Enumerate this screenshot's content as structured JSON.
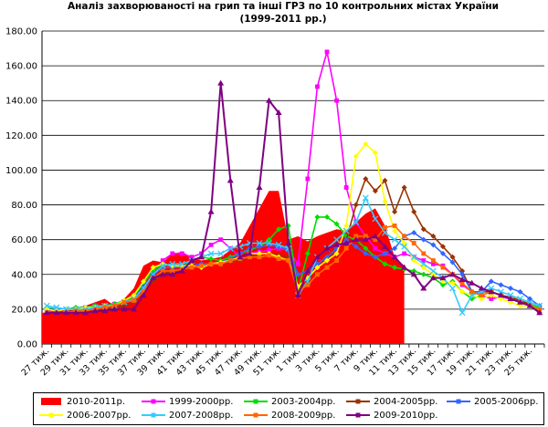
{
  "chart_data": {
    "type": "line",
    "title_line1": "Аналіз захворюваності на грип та інші ГРЗ по 10 контрольних містах України",
    "title_line2": "(1999-2011 рр.)",
    "xlabel": "",
    "ylabel": "",
    "ylim": [
      0,
      180
    ],
    "yticks": [
      "0.00",
      "20.00",
      "40.00",
      "60.00",
      "80.00",
      "100.00",
      "120.00",
      "140.00",
      "160.00",
      "180.00"
    ],
    "grid": "y",
    "categories": [
      "27 тиж.",
      "28 тиж.",
      "29 тиж.",
      "30 тиж.",
      "31 тиж.",
      "32 тиж.",
      "33 тиж.",
      "34 тиж.",
      "35 тиж.",
      "36 тиж.",
      "37 тиж.",
      "38 тиж.",
      "39 тиж.",
      "40 тиж.",
      "41 тиж.",
      "42 тиж.",
      "43 тиж.",
      "44 тиж.",
      "45 тиж.",
      "46 тиж.",
      "47 тиж.",
      "48 тиж.",
      "49 тиж.",
      "50 тиж.",
      "51 тиж.",
      "52 тиж.",
      "1 тиж.",
      "2 тиж.",
      "3 тиж.",
      "4 тиж.",
      "5 тиж.",
      "6 тиж.",
      "7 тиж.",
      "8 тиж.",
      "9 тиж.",
      "10 тиж.",
      "11 тиж.",
      "12 тиж.",
      "13 тиж.",
      "14 тиж.",
      "15 тиж.",
      "16 тиж.",
      "17 тиж.",
      "18 тиж.",
      "19 тиж.",
      "20 тиж.",
      "21 тиж.",
      "22 тиж.",
      "23 тиж.",
      "24 тиж.",
      "25 тиж.",
      "26 тиж."
    ],
    "tick_labels": [
      "27 тиж.",
      "29 тиж.",
      "31 тиж.",
      "33 тиж.",
      "35 тиж.",
      "37 тиж.",
      "39 тиж.",
      "41 тиж.",
      "43 тиж.",
      "45 тиж.",
      "47 тиж.",
      "49 тиж.",
      "51 тиж.",
      "1 тиж.",
      "3 тиж.",
      "5 тиж.",
      "7 тиж.",
      "9 тиж.",
      "11 тиж.",
      "13 тиж.",
      "15 тиж.",
      "17 тиж.",
      "19 тиж.",
      "21 тиж.",
      "23 тиж.",
      "25 тиж."
    ],
    "series": [
      {
        "name": "2010-2011р.",
        "kind": "area",
        "color": "#ff0000",
        "marker": "none",
        "values": [
          18,
          19,
          20,
          21,
          22,
          24,
          26,
          22,
          26,
          32,
          45,
          48,
          47,
          52,
          53,
          50,
          48,
          49,
          50,
          54,
          58,
          68,
          78,
          88,
          88,
          60,
          62,
          59,
          62,
          64,
          66,
          65,
          70,
          75,
          78,
          68,
          50,
          45,
          null,
          null,
          null,
          null,
          null,
          null,
          null,
          null,
          null,
          null,
          null,
          null,
          null,
          null
        ]
      },
      {
        "name": "1999-2000рр.",
        "kind": "line",
        "color": "#ff00ff",
        "marker": "square",
        "values": [
          19,
          19,
          20,
          20,
          21,
          22,
          22,
          23,
          24,
          25,
          33,
          40,
          48,
          52,
          52,
          50,
          52,
          57,
          60,
          55,
          50,
          52,
          53,
          54,
          55,
          54,
          46,
          95,
          148,
          168,
          140,
          90,
          70,
          62,
          55,
          52,
          50,
          52,
          50,
          48,
          46,
          45,
          40,
          34,
          30,
          28,
          26,
          27,
          26,
          24,
          22,
          20
        ]
      },
      {
        "name": "2003-2004рр.",
        "kind": "line",
        "color": "#00dd00",
        "marker": "diamond",
        "values": [
          21,
          20,
          20,
          21,
          21,
          22,
          22,
          23,
          25,
          27,
          35,
          42,
          46,
          45,
          44,
          48,
          50,
          49,
          48,
          50,
          52,
          54,
          56,
          60,
          66,
          68,
          31,
          52,
          73,
          73,
          69,
          62,
          60,
          55,
          50,
          46,
          44,
          43,
          42,
          40,
          38,
          34,
          36,
          30,
          26,
          28,
          30,
          28,
          26,
          24,
          23,
          21
        ]
      },
      {
        "name": "2004-2005рр.",
        "kind": "line",
        "color": "#993300",
        "marker": "diamond",
        "values": [
          18,
          18,
          18,
          19,
          19,
          20,
          20,
          21,
          22,
          24,
          30,
          36,
          40,
          42,
          43,
          44,
          45,
          46,
          46,
          47,
          48,
          50,
          52,
          52,
          51,
          50,
          28,
          37,
          44,
          48,
          55,
          60,
          80,
          95,
          88,
          94,
          76,
          90,
          76,
          66,
          62,
          56,
          50,
          42,
          30,
          30,
          30,
          28,
          27,
          25,
          23,
          18
        ]
      },
      {
        "name": "2005-2006рр.",
        "kind": "line",
        "color": "#3366ff",
        "marker": "diamond",
        "values": [
          20,
          20,
          20,
          20,
          20,
          21,
          22,
          22,
          24,
          26,
          33,
          40,
          44,
          44,
          44,
          45,
          46,
          46,
          47,
          49,
          52,
          55,
          56,
          57,
          56,
          54,
          40,
          42,
          46,
          50,
          55,
          60,
          56,
          52,
          50,
          52,
          55,
          62,
          64,
          60,
          57,
          52,
          47,
          40,
          30,
          30,
          36,
          34,
          32,
          30,
          26,
          22
        ]
      },
      {
        "name": "2006-2007рр.",
        "kind": "line",
        "color": "#ffff00",
        "marker": "diamond",
        "values": [
          20,
          19,
          20,
          20,
          21,
          21,
          22,
          22,
          25,
          28,
          36,
          44,
          46,
          45,
          45,
          45,
          44,
          46,
          47,
          48,
          50,
          52,
          52,
          52,
          50,
          48,
          33,
          38,
          44,
          48,
          52,
          68,
          108,
          115,
          110,
          82,
          65,
          58,
          48,
          44,
          40,
          36,
          35,
          30,
          28,
          26,
          28,
          26,
          24,
          22,
          22,
          20
        ]
      },
      {
        "name": "2007-2008рр.",
        "kind": "line",
        "color": "#33ccff",
        "marker": "x",
        "values": [
          22,
          21,
          20,
          20,
          20,
          21,
          22,
          22,
          24,
          26,
          32,
          40,
          45,
          46,
          46,
          48,
          50,
          52,
          52,
          55,
          56,
          58,
          58,
          58,
          57,
          55,
          28,
          36,
          50,
          55,
          60,
          65,
          70,
          84,
          72,
          64,
          60,
          56,
          50,
          46,
          42,
          38,
          32,
          18,
          28,
          30,
          32,
          30,
          28,
          26,
          24,
          22
        ]
      },
      {
        "name": "2008-2009рр.",
        "kind": "line",
        "color": "#ff6600",
        "marker": "square",
        "values": [
          18,
          18,
          18,
          19,
          19,
          20,
          21,
          22,
          24,
          25,
          30,
          38,
          42,
          42,
          43,
          44,
          45,
          46,
          46,
          48,
          49,
          50,
          50,
          51,
          49,
          48,
          30,
          34,
          40,
          44,
          48,
          55,
          62,
          62,
          60,
          67,
          68,
          62,
          58,
          52,
          48,
          44,
          40,
          35,
          30,
          28,
          30,
          28,
          26,
          24,
          22,
          20
        ]
      },
      {
        "name": "2009-2010рр.",
        "kind": "line",
        "color": "#800080",
        "marker": "triangle",
        "values": [
          18,
          18,
          18,
          18,
          18,
          19,
          19,
          20,
          20,
          20,
          28,
          38,
          40,
          40,
          42,
          48,
          50,
          76,
          150,
          94,
          50,
          52,
          90,
          140,
          133,
          58,
          28,
          42,
          50,
          55,
          57,
          58,
          60,
          60,
          62,
          56,
          50,
          44,
          40,
          32,
          38,
          38,
          40,
          37,
          35,
          32,
          30,
          28,
          26,
          24,
          22,
          18
        ]
      }
    ]
  }
}
